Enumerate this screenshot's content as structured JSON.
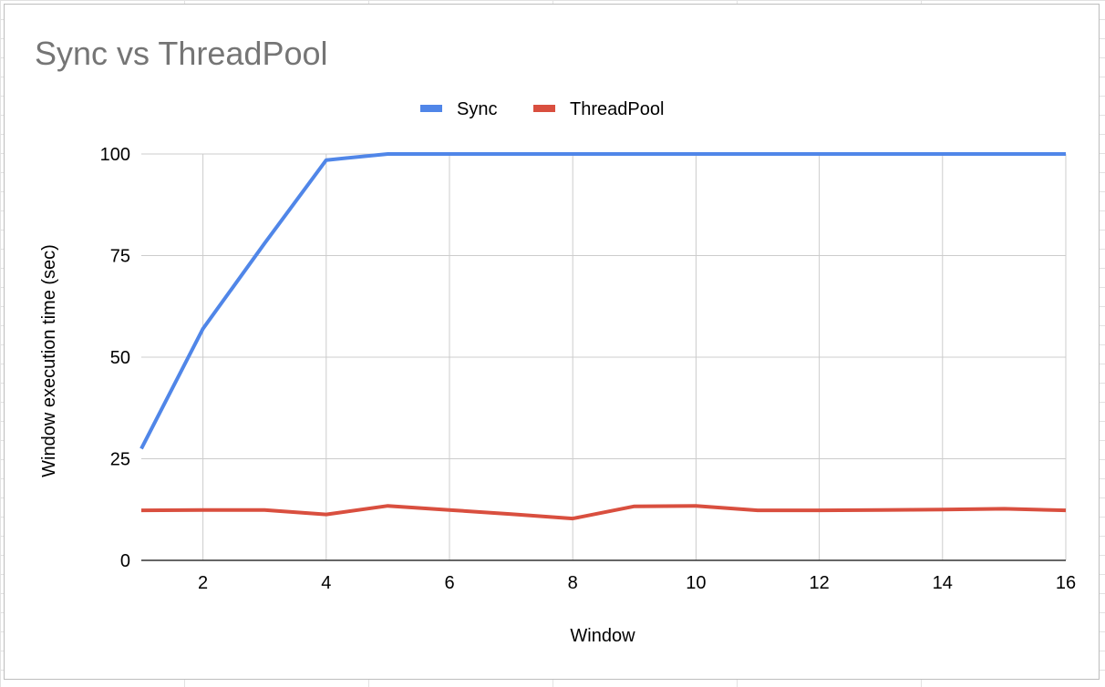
{
  "chart_data": {
    "type": "line",
    "title": "Sync vs ThreadPool",
    "xlabel": "Window",
    "ylabel": "Window execution time (sec)",
    "x": [
      1,
      2,
      3,
      4,
      5,
      6,
      7,
      8,
      9,
      10,
      11,
      12,
      13,
      14,
      15,
      16
    ],
    "xlim": [
      1,
      16
    ],
    "ylim": [
      0,
      100
    ],
    "x_ticks": [
      2,
      4,
      6,
      8,
      10,
      12,
      14,
      16
    ],
    "y_ticks": [
      0,
      25,
      50,
      75,
      100
    ],
    "grid": true,
    "legend_position": "top",
    "series": [
      {
        "name": "Sync",
        "color": "#5086e8",
        "values": [
          27.5,
          57,
          78,
          98.5,
          100,
          100,
          100,
          100,
          100,
          100,
          100,
          100,
          100,
          100,
          100,
          100
        ]
      },
      {
        "name": "ThreadPool",
        "color": "#d94f3f",
        "values": [
          12.3,
          12.4,
          12.4,
          11.3,
          13.4,
          12.4,
          11.4,
          10.3,
          13.3,
          13.4,
          12.3,
          12.3,
          12.4,
          12.5,
          12.7,
          12.3
        ]
      }
    ]
  }
}
